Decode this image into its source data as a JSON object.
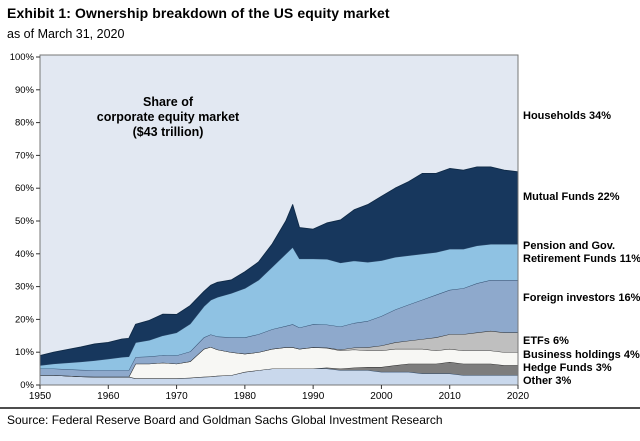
{
  "header": {
    "title": "Exhibit 1: Ownership breakdown of the US equity market",
    "subtitle": "as of March 31, 2020"
  },
  "annotation": {
    "line1": "Share of",
    "line2": "corporate equity market",
    "line3": "($43 trillion)"
  },
  "footer": {
    "source": "Source: Federal Reserve Board and Goldman Sachs Global Investment Research"
  },
  "chart_data": {
    "type": "area",
    "stacked": true,
    "xlim": [
      1950,
      2020
    ],
    "ylim": [
      0,
      100
    ],
    "x_ticks": [
      1950,
      1960,
      1970,
      1980,
      1990,
      2000,
      2010,
      2020
    ],
    "y_ticks": [
      0,
      10,
      20,
      30,
      40,
      50,
      60,
      70,
      80,
      90,
      100
    ],
    "grid": false,
    "legend_position": "right-outside",
    "border_color": "#777777",
    "x": [
      1950,
      1952,
      1954,
      1956,
      1958,
      1960,
      1962,
      1963,
      1964,
      1966,
      1968,
      1970,
      1972,
      1974,
      1975,
      1976,
      1978,
      1980,
      1982,
      1984,
      1986,
      1987,
      1988,
      1990,
      1992,
      1994,
      1996,
      1998,
      2000,
      2002,
      2004,
      2006,
      2008,
      2010,
      2012,
      2014,
      2016,
      2018,
      2020
    ],
    "series": [
      {
        "name": "other",
        "label": "Other 3%",
        "color": "#c9d8ec",
        "line": "#2e4a6b",
        "values": [
          3,
          3,
          2.8,
          2.6,
          2.5,
          2.5,
          2.5,
          2.5,
          2,
          2,
          2,
          2,
          2.2,
          2.5,
          2.6,
          2.8,
          3,
          4,
          4.5,
          5,
          5,
          5,
          5,
          5,
          5,
          4.5,
          4.5,
          4.5,
          4,
          4,
          4,
          3.5,
          3.5,
          3.5,
          3,
          3,
          3,
          3,
          3
        ]
      },
      {
        "name": "hedge_funds",
        "label": "Hedge Funds 3%",
        "color": "#7d7d7d",
        "line": "#262626",
        "values": [
          0,
          0,
          0,
          0,
          0,
          0,
          0,
          0,
          0,
          0,
          0,
          0,
          0,
          0,
          0,
          0,
          0,
          0,
          0,
          0,
          0,
          0,
          0,
          0,
          0.3,
          0.5,
          0.8,
          1,
          1.5,
          2,
          2.5,
          3,
          3,
          3.5,
          3.5,
          3.5,
          3.5,
          3,
          3
        ]
      },
      {
        "name": "business_holdings",
        "label": "Business holdings 4%",
        "color": "#f7f7f4",
        "line": "#262626",
        "values": [
          0,
          0,
          0,
          0,
          0,
          0,
          0,
          0,
          4.5,
          4.5,
          4.8,
          4.5,
          5,
          8.5,
          9,
          8,
          7,
          5.5,
          5.5,
          6,
          6.5,
          6.5,
          6,
          6.5,
          6,
          5.5,
          5.5,
          5,
          5,
          5,
          4.5,
          4.5,
          4,
          4,
          4,
          4,
          4,
          4,
          4
        ]
      },
      {
        "name": "etfs",
        "label": "ETFs 6%",
        "color": "#bfbfbf",
        "line": "#262626",
        "values": [
          0,
          0,
          0,
          0,
          0,
          0,
          0,
          0,
          0,
          0,
          0,
          0,
          0,
          0,
          0,
          0,
          0,
          0,
          0,
          0,
          0,
          0,
          0,
          0,
          0.1,
          0.3,
          0.6,
          1,
          1.5,
          2,
          2.5,
          3,
          4,
          4.5,
          5,
          5.5,
          6,
          6,
          6
        ]
      },
      {
        "name": "foreign_investors",
        "label": "Foreign investors 16%",
        "color": "#8ea9cc",
        "line": "#2e4a6b",
        "values": [
          2,
          2,
          2,
          2,
          2,
          2,
          2,
          2,
          2,
          2.2,
          2.3,
          2.5,
          3,
          3.5,
          3.8,
          4,
          4.5,
          5,
          5.5,
          6,
          6.5,
          7,
          6.5,
          7,
          7,
          7,
          7.5,
          8,
          9,
          10,
          11,
          12,
          13,
          13.5,
          14,
          15,
          15.5,
          16,
          16
        ]
      },
      {
        "name": "pension_gov_retirement",
        "label": "Pension and Gov.\nRetirement Funds 11%",
        "color": "#8fc2e3",
        "line": "#2e4a6b",
        "values": [
          1,
          1.5,
          2,
          2.5,
          3,
          3.5,
          4,
          4.2,
          4.5,
          5,
          6,
          7,
          8.5,
          9.5,
          10.5,
          12,
          13.5,
          15,
          16.5,
          19,
          22,
          23.5,
          21,
          20,
          20,
          19.5,
          19,
          18,
          17,
          16,
          15,
          14,
          13,
          12.5,
          12,
          11.5,
          11,
          11,
          11
        ]
      },
      {
        "name": "mutual_funds",
        "label": "Mutual Funds 22%",
        "color": "#17375d",
        "line": "#0f2a47",
        "values": [
          3,
          3.5,
          4,
          4.5,
          5,
          5,
          5.5,
          5.5,
          5.5,
          6,
          6.5,
          5.5,
          5.5,
          4.5,
          4.5,
          4.5,
          4,
          5,
          5.5,
          7,
          10,
          13,
          9.5,
          9,
          11,
          13,
          15.5,
          17.5,
          19.5,
          21,
          22.5,
          24.5,
          24,
          24.5,
          24,
          24,
          23.5,
          22.5,
          22
        ]
      },
      {
        "name": "households",
        "label": "Households 34%",
        "color": "#e2e8f2",
        "line": "#777777",
        "remainder": true
      }
    ]
  }
}
